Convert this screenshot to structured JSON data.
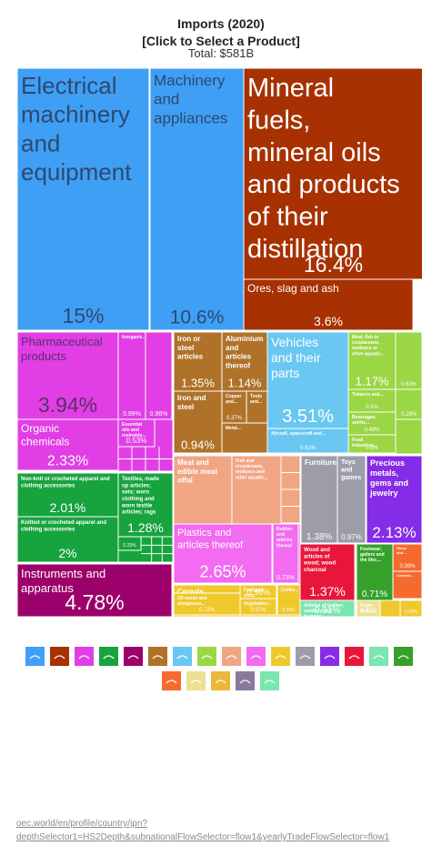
{
  "header": {
    "title": "Imports (2020)",
    "subtitle": "[Click to Select a Product]",
    "total": "Total: $581B"
  },
  "source_link": "oec.world/en/profile/country/jpn?depthSelector1=HS2Depth&subnationalFlowSelector=flow1&yearlyTradeFlowSelector=flow1",
  "colors": {
    "machinery": "#3f9ff5",
    "mineral": "#a73101",
    "chemicals": "#e13ee6",
    "metals": "#b07228",
    "vehicles": "#69c7f2",
    "vegetable": "#9bd645",
    "textiles": "#17a33e",
    "animal_products": "#f0a685",
    "stone": "#9c9da8",
    "plastics": "#f26bf0",
    "precious": "#852ce6",
    "foodstuffs": "#efc92c",
    "instruments": "#9c006a",
    "wood": "#e8163a",
    "footwear": "#36a02a",
    "animal_hides": "#7ae6b0",
    "paper": "#ece095",
    "misc": "#f66a30"
  },
  "chart_data": {
    "type": "treemap",
    "title": "Imports (2020)",
    "subtitle": "[Click to Select a Product]",
    "total": "Total: $581B",
    "labeled_tiles": [
      {
        "name": "Electrical machinery and equipment",
        "share": "15%",
        "value": 15,
        "section": "machinery"
      },
      {
        "name": "Machinery and appliances",
        "share": "10.6%",
        "value": 10.6,
        "section": "machinery"
      },
      {
        "name": "Mineral fuels, mineral oils and products of their distillation",
        "share": "16.4%",
        "value": 16.4,
        "section": "mineral"
      },
      {
        "name": "Ores, slag and ash",
        "share": "3.6%",
        "value": 3.6,
        "section": "mineral"
      },
      {
        "name": "Pharmaceutical products",
        "share": "3.94%",
        "value": 3.94,
        "section": "chemicals"
      },
      {
        "name": "Organic chemicals",
        "share": "2.33%",
        "value": 2.33,
        "section": "chemicals"
      },
      {
        "name": "Inorganic...",
        "share": "0.99%",
        "value": 0.99,
        "section": "chemicals"
      },
      {
        "name": "",
        "share": "0.96%",
        "value": 0.96,
        "section": "chemicals"
      },
      {
        "name": "Essential oils and resinoids...",
        "share": "0.53%",
        "value": 0.53,
        "section": "chemicals"
      },
      {
        "name": "Iron or steel articles",
        "share": "1.35%",
        "value": 1.35,
        "section": "metals"
      },
      {
        "name": "Aluminium and articles thereof",
        "share": "1.14%",
        "value": 1.14,
        "section": "metals"
      },
      {
        "name": "Iron and steel",
        "share": "0.94%",
        "value": 0.94,
        "section": "metals"
      },
      {
        "name": "Copper and...",
        "share": "0.37%",
        "value": 0.37,
        "section": "metals"
      },
      {
        "name": "Tools and...",
        "share": "",
        "value": 0.3,
        "section": "metals"
      },
      {
        "name": "Metal...",
        "share": "",
        "value": 0.2,
        "section": "metals"
      },
      {
        "name": "Vehicles and their parts",
        "share": "3.51%",
        "value": 3.51,
        "section": "vehicles"
      },
      {
        "name": "Aircraft, spacecraft and...",
        "share": "0.61%",
        "value": 0.61,
        "section": "vehicles"
      },
      {
        "name": "Meat, fish or crustaceans, molluscs or other aquatic...",
        "share": "1.17%",
        "value": 1.17,
        "section": "vegetable"
      },
      {
        "name": "",
        "share": "0.63%",
        "value": 0.63,
        "section": "vegetable"
      },
      {
        "name": "Tobacco and...",
        "share": "0.5%",
        "value": 0.5,
        "section": "vegetable"
      },
      {
        "name": "",
        "share": "0.29%",
        "value": 0.29,
        "section": "vegetable"
      },
      {
        "name": "Beverages, spirits...",
        "share": "0.48%",
        "value": 0.48,
        "section": "vegetable"
      },
      {
        "name": "Food industries...",
        "share": "0.43%",
        "value": 0.43,
        "section": "vegetable"
      },
      {
        "name": "Non-knit or crocheted apparel and clothing accessories",
        "share": "2.01%",
        "value": 2.01,
        "section": "textiles"
      },
      {
        "name": "Knitted or crocheted apparel and clothing accessories",
        "share": "2%",
        "value": 2,
        "section": "textiles"
      },
      {
        "name": "Textiles, made up articles; sets; worn clothing and worn textile articles; rags",
        "share": "1.28%",
        "value": 1.28,
        "section": "textiles"
      },
      {
        "name": "",
        "share": "0.23%",
        "value": 0.23,
        "section": "textiles"
      },
      {
        "name": "Meat and edible meat offal",
        "share": "1.69%",
        "value": 1.69,
        "section": "animal_products"
      },
      {
        "name": "Fish and crustaceans, molluscs and other aquatic...",
        "share": "1.45%",
        "value": 1.45,
        "section": "animal_products"
      },
      {
        "name": "Furniture",
        "share": "1.38%",
        "value": 1.38,
        "section": "stone"
      },
      {
        "name": "Toys and games",
        "share": "0.97%",
        "value": 0.97,
        "section": "stone"
      },
      {
        "name": "Precious metals, gems and jewelry",
        "share": "2.13%",
        "value": 2.13,
        "section": "precious"
      },
      {
        "name": "Plastics and articles thereof",
        "share": "2.65%",
        "value": 2.65,
        "section": "plastics"
      },
      {
        "name": "Rubber and articles thereof",
        "share": "0.73%",
        "value": 0.73,
        "section": "plastics"
      },
      {
        "name": "Instruments and apparatus",
        "share": "4.78%",
        "value": 4.78,
        "section": "instruments"
      },
      {
        "name": "Cereals",
        "share": "0.86%",
        "value": 0.86,
        "section": "foodstuffs"
      },
      {
        "name": "Oil seeds and oleaginous...",
        "share": "0.72%",
        "value": 0.72,
        "section": "foodstuffs"
      },
      {
        "name": "Fruit and nuts, edible; peel of...",
        "share": "0.56%",
        "value": 0.56,
        "section": "foodstuffs"
      },
      {
        "name": "Coffee...",
        "share": "0.26%",
        "value": 0.26,
        "section": "foodstuffs"
      },
      {
        "name": "Vegetables...",
        "share": "0.37%",
        "value": 0.37,
        "section": "foodstuffs"
      },
      {
        "name": "Wood and articles of wood; wood charcoal",
        "share": "1.37%",
        "value": 1.37,
        "section": "wood"
      },
      {
        "name": "Footwear; gaiters and the like;...",
        "share": "0.71%",
        "value": 0.71,
        "section": "footwear"
      },
      {
        "name": "Glass and...",
        "share": "0.39%",
        "value": 0.39,
        "section": "misc"
      },
      {
        "name": "Ceramic...",
        "share": "",
        "value": 0.2,
        "section": "misc"
      },
      {
        "name": "Articles of leather; saddlery and harness;...",
        "share": "0.91%",
        "value": 0.91,
        "section": "animal_hides"
      },
      {
        "name": "Paper and...",
        "share": "0.5%",
        "value": 0.5,
        "section": "paper"
      },
      {
        "name": "",
        "share": "0.24%",
        "value": 0.24,
        "section": "foodstuffs"
      }
    ],
    "legend": [
      {
        "section": "machinery",
        "icon": "machinery-icon"
      },
      {
        "section": "mineral",
        "icon": "mineral-icon"
      },
      {
        "section": "chemicals",
        "icon": "chemicals-icon"
      },
      {
        "section": "textiles",
        "icon": "textiles-icon"
      },
      {
        "section": "instruments",
        "icon": "instruments-icon"
      },
      {
        "section": "metals",
        "icon": "metals-icon"
      },
      {
        "section": "vehicles",
        "icon": "vehicles-icon"
      },
      {
        "section": "vegetable",
        "icon": "vegetable-icon"
      },
      {
        "section": "animal_products",
        "icon": "animal-products-icon"
      },
      {
        "section": "plastics",
        "icon": "plastics-icon"
      },
      {
        "section": "foodstuffs",
        "icon": "foodstuffs-icon"
      },
      {
        "section": "stone",
        "icon": "stone-icon"
      },
      {
        "section": "precious",
        "icon": "precious-icon"
      },
      {
        "section": "wood",
        "icon": "wood-icon"
      },
      {
        "section": "animal_hides",
        "icon": "animal-hides-icon"
      },
      {
        "section": "footwear",
        "icon": "footwear-icon"
      },
      {
        "section": "misc",
        "icon": "misc-icon"
      },
      {
        "section": "paper",
        "icon": "paper-icon"
      },
      {
        "section": "foodstuffs",
        "icon": "foodstuffs-2-icon"
      },
      {
        "section": "weapons",
        "icon": "weapons-icon"
      },
      {
        "section": "animal_hides",
        "icon": "animal-hides-2-icon"
      }
    ],
    "legend_colors_extra": {
      "weapons": "#8a7a9a",
      "misc2": "#ecb63c"
    }
  }
}
